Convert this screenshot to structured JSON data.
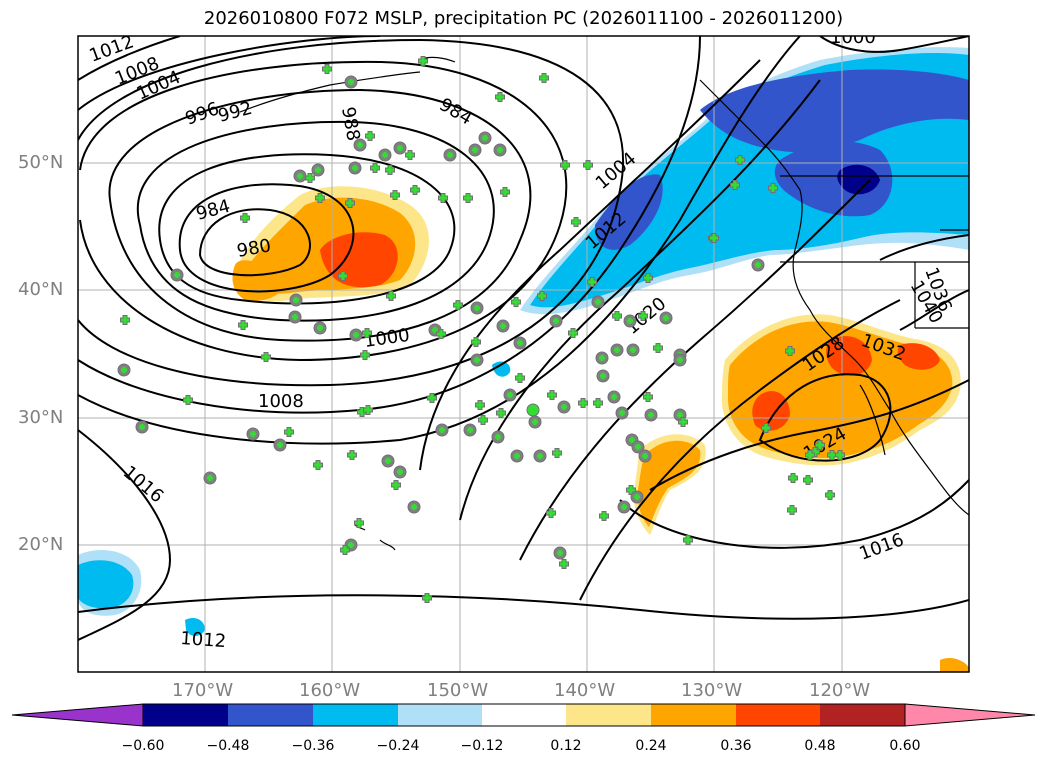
{
  "title": "2026010800 F072 MSLP, precipitation PC (2026011100 - 2026011200)",
  "map": {
    "lon_range": [
      -180,
      -110
    ],
    "lat_range": [
      10,
      60
    ],
    "lat_labels": [
      "50°N",
      "40°N",
      "30°N",
      "20°N"
    ],
    "lon_labels": [
      "170°W",
      "160°W",
      "150°W",
      "140°W",
      "130°W",
      "120°W"
    ],
    "features": {
      "low_center": {
        "name": "north pacific low",
        "lat": 42,
        "lon": -170,
        "min_mslp_label": "980"
      },
      "high_center": {
        "name": "east pacific high",
        "lat": 34,
        "lon": -126,
        "max_mslp_label": "1032"
      }
    },
    "isobar_labels": [
      "1012",
      "1008",
      "1004",
      "996",
      "992",
      "988",
      "984",
      "984",
      "980",
      "1000",
      "1008",
      "1016",
      "1012",
      "1004",
      "1012",
      "1020",
      "1028",
      "1032",
      "1024",
      "1016",
      "1000",
      "1036",
      "1040"
    ],
    "colors": {
      "isobar": "#000000",
      "grid": "#b0b0b0",
      "coast": "#000000",
      "marker_fill": "#33dd33",
      "marker_edge": "#707070",
      "circle_marker": "#808080"
    }
  },
  "colorbar": {
    "ticks": [
      "−0.60",
      "−0.48",
      "−0.36",
      "−0.24",
      "−0.12",
      "0.12",
      "0.24",
      "0.36",
      "0.48",
      "0.60"
    ],
    "colors": [
      "#9933cc",
      "#00008b",
      "#3355cc",
      "#00bbf0",
      "#b0e0f8",
      "#ffffff",
      "#fde68a",
      "#ffa500",
      "#ff4500",
      "#b22222",
      "#ff88aa"
    ]
  }
}
